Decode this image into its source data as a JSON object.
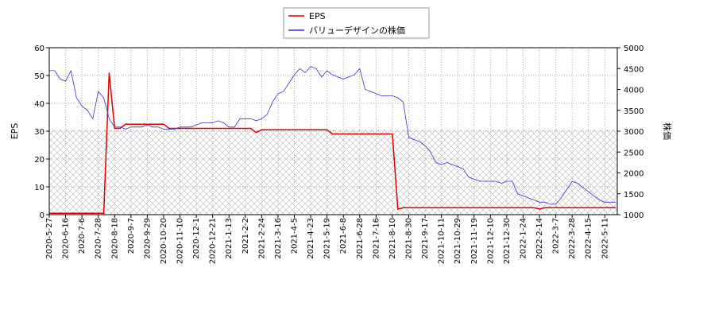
{
  "chart_data": {
    "type": "line",
    "categories": [
      "2020-5-27",
      null,
      null,
      "2020-6-16",
      null,
      null,
      "2020-7-6",
      null,
      null,
      "2020-7-28",
      null,
      null,
      "2020-8-18",
      null,
      null,
      "2020-9-7",
      null,
      null,
      "2020-9-29",
      null,
      null,
      "2020-10-20",
      null,
      null,
      "2020-11-10",
      null,
      null,
      "2020-12-1",
      null,
      null,
      "2020-12-21",
      null,
      null,
      "2021-1-13",
      null,
      null,
      "2021-2-2",
      null,
      null,
      "2021-2-24",
      null,
      null,
      "2021-3-16",
      null,
      null,
      "2021-4-5",
      null,
      null,
      "2021-4-23",
      null,
      null,
      "2021-5-19",
      null,
      null,
      "2021-6-8",
      null,
      null,
      "2021-6-28",
      null,
      null,
      "2021-7-16",
      null,
      null,
      "2021-8-10",
      null,
      null,
      "2021-8-30",
      null,
      null,
      "2021-9-17",
      null,
      null,
      "2021-10-11",
      null,
      null,
      "2021-10-29",
      null,
      null,
      "2021-11-19",
      null,
      null,
      "2021-12-10",
      null,
      null,
      "2021-12-30",
      null,
      null,
      "2022-1-24",
      null,
      null,
      "2022-2-14",
      null,
      null,
      "2022-3-7",
      null,
      null,
      "2022-3-28",
      null,
      null,
      "2022-4-15",
      null,
      null,
      "2022-5-11",
      null,
      null
    ],
    "series": [
      {
        "name": "EPS",
        "color": "#dd0000",
        "values": [
          0.5,
          0.5,
          0.5,
          0.5,
          0.5,
          0.5,
          0.5,
          0.5,
          0.5,
          0.5,
          0.5,
          51,
          31,
          31,
          32.5,
          32.5,
          32.5,
          32.5,
          32.5,
          32.5,
          32.5,
          32.5,
          31,
          31,
          31,
          31,
          31,
          31,
          31,
          31,
          31,
          31,
          31,
          31,
          31,
          31,
          31,
          31,
          29.5,
          30.5,
          30.5,
          30.5,
          30.5,
          30.5,
          30.5,
          30.5,
          30.5,
          30.5,
          30.5,
          30.5,
          30.5,
          30.5,
          29,
          29,
          29,
          29,
          29,
          29,
          29,
          29,
          29,
          29,
          29,
          29,
          2,
          2.5,
          2.5,
          2.5,
          2.5,
          2.5,
          2.5,
          2.5,
          2.5,
          2.5,
          2.5,
          2.5,
          2.5,
          2.5,
          2.5,
          2.5,
          2.5,
          2.5,
          2.5,
          2.5,
          2.5,
          2.5,
          2.5,
          2.5,
          2.5,
          2.5,
          2,
          2.5,
          2.5,
          2.5,
          2.5,
          2.5,
          2.5,
          2.5,
          2.5,
          2.5,
          2.5,
          2.5,
          2.5,
          2.5,
          2.5
        ]
      },
      {
        "name": "バリューデザインの株価",
        "color": "#3333cc",
        "axis": "y2",
        "values": [
          4450,
          4450,
          4250,
          4200,
          4450,
          3800,
          3600,
          3500,
          3300,
          3950,
          3800,
          3300,
          3100,
          3100,
          3050,
          3100,
          3100,
          3100,
          3150,
          3100,
          3100,
          3050,
          3050,
          3050,
          3100,
          3100,
          3100,
          3150,
          3200,
          3200,
          3200,
          3250,
          3200,
          3100,
          3100,
          3300,
          3300,
          3300,
          3250,
          3300,
          3400,
          3700,
          3900,
          3950,
          4150,
          4350,
          4500,
          4400,
          4550,
          4500,
          4300,
          4450,
          4350,
          4300,
          4250,
          4300,
          4350,
          4500,
          4000,
          3950,
          3900,
          3850,
          3850,
          3850,
          3800,
          3700,
          2850,
          2800,
          2750,
          2650,
          2500,
          2250,
          2200,
          2250,
          2200,
          2150,
          2100,
          1900,
          1850,
          1800,
          1800,
          1800,
          1800,
          1750,
          1800,
          1800,
          1500,
          1450,
          1400,
          1350,
          1300,
          1300,
          1250,
          1250,
          1400,
          1600,
          1800,
          1750,
          1650,
          1550,
          1450,
          1350,
          1300,
          1300,
          1300
        ]
      }
    ],
    "ylabel": "EPS",
    "y2label": "株価",
    "ylim": [
      0,
      60
    ],
    "yticks": [
      0,
      10,
      20,
      30,
      40,
      50,
      60
    ],
    "y2lim": [
      1000,
      5000
    ],
    "y2ticks": [
      1000,
      1500,
      2000,
      2500,
      3000,
      3500,
      4000,
      4500,
      5000
    ],
    "grid": true,
    "legend": "top"
  }
}
